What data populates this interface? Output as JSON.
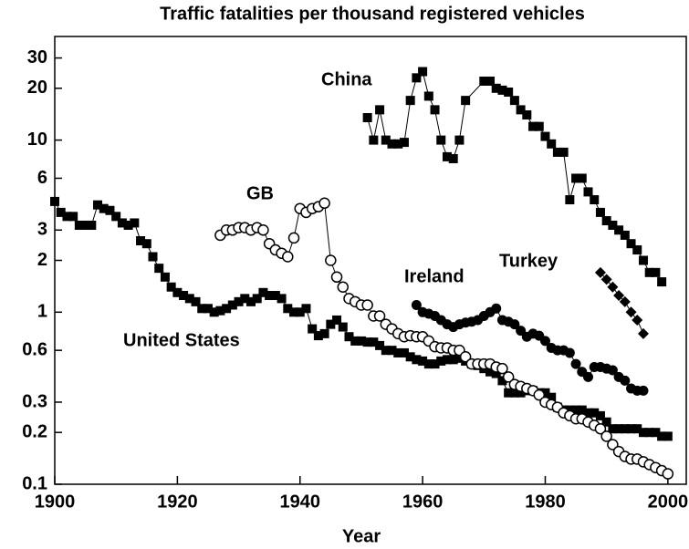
{
  "chart_data": {
    "type": "scatter",
    "title": "Traffic fatalities per thousand registered vehicles",
    "x_label": "Year",
    "log_y": true,
    "xlim": [
      1900,
      2003
    ],
    "xticks": [
      1900,
      1920,
      1940,
      1960,
      1980,
      2000
    ],
    "ylim": [
      0.1,
      40
    ],
    "yticks": [
      0.1,
      0.2,
      0.3,
      0.6,
      1,
      2,
      3,
      6,
      10,
      20,
      30
    ],
    "series": [
      {
        "name": "United States",
        "color": "#000000",
        "marker": "square",
        "x": [
          1900,
          1901,
          1902,
          1903,
          1904,
          1905,
          1906,
          1907,
          1908,
          1909,
          1910,
          1911,
          1912,
          1913,
          1914,
          1915,
          1916,
          1917,
          1918,
          1919,
          1920,
          1921,
          1922,
          1923,
          1924,
          1925,
          1926,
          1927,
          1928,
          1929,
          1930,
          1931,
          1932,
          1933,
          1934,
          1935,
          1936,
          1937,
          1938,
          1939,
          1940,
          1941,
          1942,
          1943,
          1944,
          1945,
          1946,
          1947,
          1948,
          1949,
          1950,
          1951,
          1952,
          1953,
          1954,
          1955,
          1956,
          1957,
          1958,
          1959,
          1960,
          1961,
          1962,
          1963,
          1964,
          1965,
          1966,
          1967,
          1968,
          1969,
          1970,
          1971,
          1972,
          1973,
          1974,
          1975,
          1976,
          1977,
          1978,
          1979,
          1980,
          1981,
          1982,
          1983,
          1984,
          1985,
          1986,
          1987,
          1988,
          1989,
          1990,
          1991,
          1992,
          1993,
          1994,
          1995,
          1996,
          1997,
          1998,
          1999,
          2000
        ],
        "values": [
          4.4,
          3.8,
          3.6,
          3.6,
          3.2,
          3.2,
          3.2,
          4.2,
          4.0,
          3.9,
          3.6,
          3.3,
          3.2,
          3.3,
          2.6,
          2.5,
          2.1,
          1.8,
          1.6,
          1.4,
          1.3,
          1.25,
          1.2,
          1.15,
          1.05,
          1.05,
          1.0,
          1.02,
          1.05,
          1.1,
          1.15,
          1.2,
          1.15,
          1.2,
          1.3,
          1.25,
          1.25,
          1.2,
          1.05,
          1.0,
          1.0,
          1.05,
          0.8,
          0.73,
          0.75,
          0.85,
          0.9,
          0.82,
          0.72,
          0.68,
          0.68,
          0.67,
          0.67,
          0.64,
          0.6,
          0.6,
          0.58,
          0.58,
          0.55,
          0.53,
          0.52,
          0.5,
          0.5,
          0.52,
          0.53,
          0.53,
          0.54,
          0.52,
          0.5,
          0.49,
          0.47,
          0.45,
          0.44,
          0.4,
          0.34,
          0.34,
          0.34,
          0.35,
          0.35,
          0.34,
          0.34,
          0.32,
          0.28,
          0.27,
          0.27,
          0.27,
          0.27,
          0.26,
          0.26,
          0.25,
          0.23,
          0.21,
          0.21,
          0.21,
          0.21,
          0.21,
          0.2,
          0.2,
          0.2,
          0.19,
          0.19
        ]
      },
      {
        "name": "GB",
        "color": "#000000",
        "marker": "circle-open",
        "x": [
          1927,
          1928,
          1929,
          1930,
          1931,
          1932,
          1933,
          1934,
          1935,
          1936,
          1937,
          1938,
          1939,
          1940,
          1941,
          1942,
          1943,
          1944,
          1945,
          1946,
          1947,
          1948,
          1949,
          1950,
          1951,
          1952,
          1953,
          1954,
          1955,
          1956,
          1957,
          1958,
          1959,
          1960,
          1961,
          1962,
          1963,
          1964,
          1965,
          1966,
          1967,
          1968,
          1969,
          1970,
          1971,
          1972,
          1973,
          1974,
          1975,
          1976,
          1977,
          1978,
          1979,
          1980,
          1981,
          1982,
          1983,
          1984,
          1985,
          1986,
          1987,
          1988,
          1989,
          1990,
          1991,
          1992,
          1993,
          1994,
          1995,
          1996,
          1997,
          1998,
          1999,
          2000
        ],
        "values": [
          2.8,
          3.0,
          3.0,
          3.1,
          3.1,
          3.0,
          3.1,
          3.0,
          2.5,
          2.3,
          2.2,
          2.1,
          2.7,
          4.0,
          3.8,
          4.0,
          4.1,
          4.3,
          2.0,
          1.6,
          1.4,
          1.2,
          1.15,
          1.1,
          1.1,
          0.95,
          0.95,
          0.85,
          0.8,
          0.75,
          0.72,
          0.73,
          0.72,
          0.72,
          0.68,
          0.63,
          0.62,
          0.62,
          0.6,
          0.6,
          0.55,
          0.5,
          0.5,
          0.5,
          0.5,
          0.48,
          0.47,
          0.42,
          0.38,
          0.37,
          0.36,
          0.35,
          0.33,
          0.3,
          0.29,
          0.28,
          0.26,
          0.25,
          0.24,
          0.24,
          0.23,
          0.22,
          0.21,
          0.19,
          0.17,
          0.155,
          0.145,
          0.14,
          0.14,
          0.135,
          0.13,
          0.125,
          0.12,
          0.115
        ]
      },
      {
        "name": "Ireland",
        "color": "#000000",
        "marker": "circle",
        "x": [
          1959,
          1960,
          1961,
          1962,
          1963,
          1964,
          1965,
          1966,
          1967,
          1968,
          1969,
          1970,
          1971,
          1972,
          1973,
          1974,
          1975,
          1976,
          1977,
          1978,
          1979,
          1980,
          1981,
          1982,
          1983,
          1984,
          1985,
          1986,
          1987,
          1988,
          1989,
          1990,
          1991,
          1992,
          1993,
          1994,
          1995,
          1996
        ],
        "values": [
          1.1,
          1.0,
          0.98,
          0.95,
          0.9,
          0.85,
          0.82,
          0.85,
          0.87,
          0.88,
          0.9,
          0.95,
          1.0,
          1.05,
          0.9,
          0.88,
          0.85,
          0.78,
          0.72,
          0.75,
          0.73,
          0.68,
          0.62,
          0.6,
          0.6,
          0.58,
          0.5,
          0.45,
          0.42,
          0.48,
          0.48,
          0.47,
          0.46,
          0.42,
          0.4,
          0.36,
          0.35,
          0.35
        ]
      },
      {
        "name": "Turkey",
        "color": "#000000",
        "marker": "diamond",
        "x": [
          1989,
          1990,
          1991,
          1992,
          1993,
          1994,
          1995,
          1996
        ],
        "values": [
          1.7,
          1.55,
          1.4,
          1.25,
          1.15,
          1.0,
          0.9,
          0.75
        ]
      },
      {
        "name": "China",
        "color": "#000000",
        "marker": "square",
        "x": [
          1951,
          1952,
          1953,
          1954,
          1955,
          1956,
          1957,
          1958,
          1959,
          1960,
          1961,
          1962,
          1963,
          1964,
          1965,
          1966,
          1967,
          1970,
          1971,
          1972,
          1973,
          1974,
          1975,
          1976,
          1977,
          1978,
          1979,
          1980,
          1981,
          1982,
          1983,
          1984,
          1985,
          1986,
          1987,
          1988,
          1989,
          1990,
          1991,
          1992,
          1993,
          1994,
          1995,
          1996,
          1997,
          1998,
          1999
        ],
        "values": [
          13.5,
          10,
          15,
          10,
          9.5,
          9.5,
          9.7,
          17,
          23,
          25,
          18,
          15,
          10,
          8,
          7.8,
          10,
          17,
          22,
          22,
          20,
          19.5,
          19,
          17,
          15,
          14,
          12,
          12,
          10.5,
          9.5,
          8.5,
          8.5,
          4.5,
          6,
          6,
          5,
          4.5,
          3.8,
          3.4,
          3.2,
          3.0,
          2.8,
          2.5,
          2.3,
          2.0,
          1.7,
          1.7,
          1.5
        ]
      }
    ]
  }
}
